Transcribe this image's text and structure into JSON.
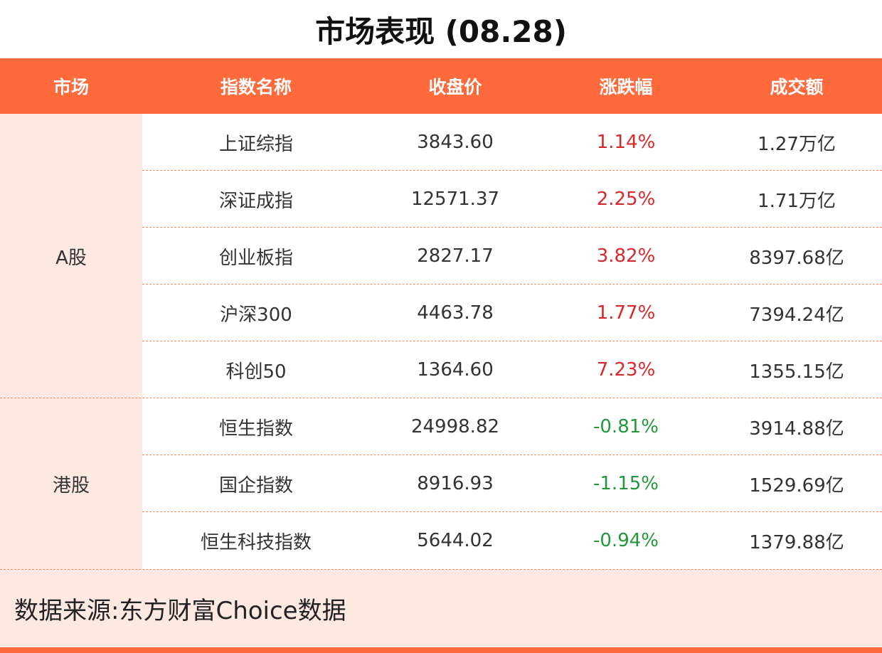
{
  "title": "市场表现 (08.28)",
  "table": {
    "header": [
      "市场",
      "指数名称",
      "收盘价",
      "涨跌幅",
      "成交额"
    ],
    "groups": [
      {
        "market": "A股",
        "rows": [
          [
            "上证综指",
            "3843.60",
            "1.14%",
            "1.27万亿"
          ],
          [
            "深证成指",
            "12571.37",
            "2.25%",
            "1.71万亿"
          ],
          [
            "创业板指",
            "2827.17",
            "3.82%",
            "8397.68亿"
          ],
          [
            "沪深300",
            "4463.78",
            "1.77%",
            "7394.24亿"
          ],
          [
            "科创50",
            "1364.60",
            "7.23%",
            "1355.15亿"
          ]
        ]
      },
      {
        "market": "港股",
        "rows": [
          [
            "恒生指数",
            "24998.82",
            "-0.81%",
            "3914.88亿"
          ],
          [
            "国企指数",
            "8916.93",
            "-1.15%",
            "1529.69亿"
          ],
          [
            "恒生科技指数",
            "5644.02",
            "-0.94%",
            "1379.88亿"
          ]
        ]
      }
    ],
    "colors": {
      "up": "#d7282e",
      "down": "#24973a"
    }
  },
  "footer": "数据来源:东方财富Choice数据"
}
